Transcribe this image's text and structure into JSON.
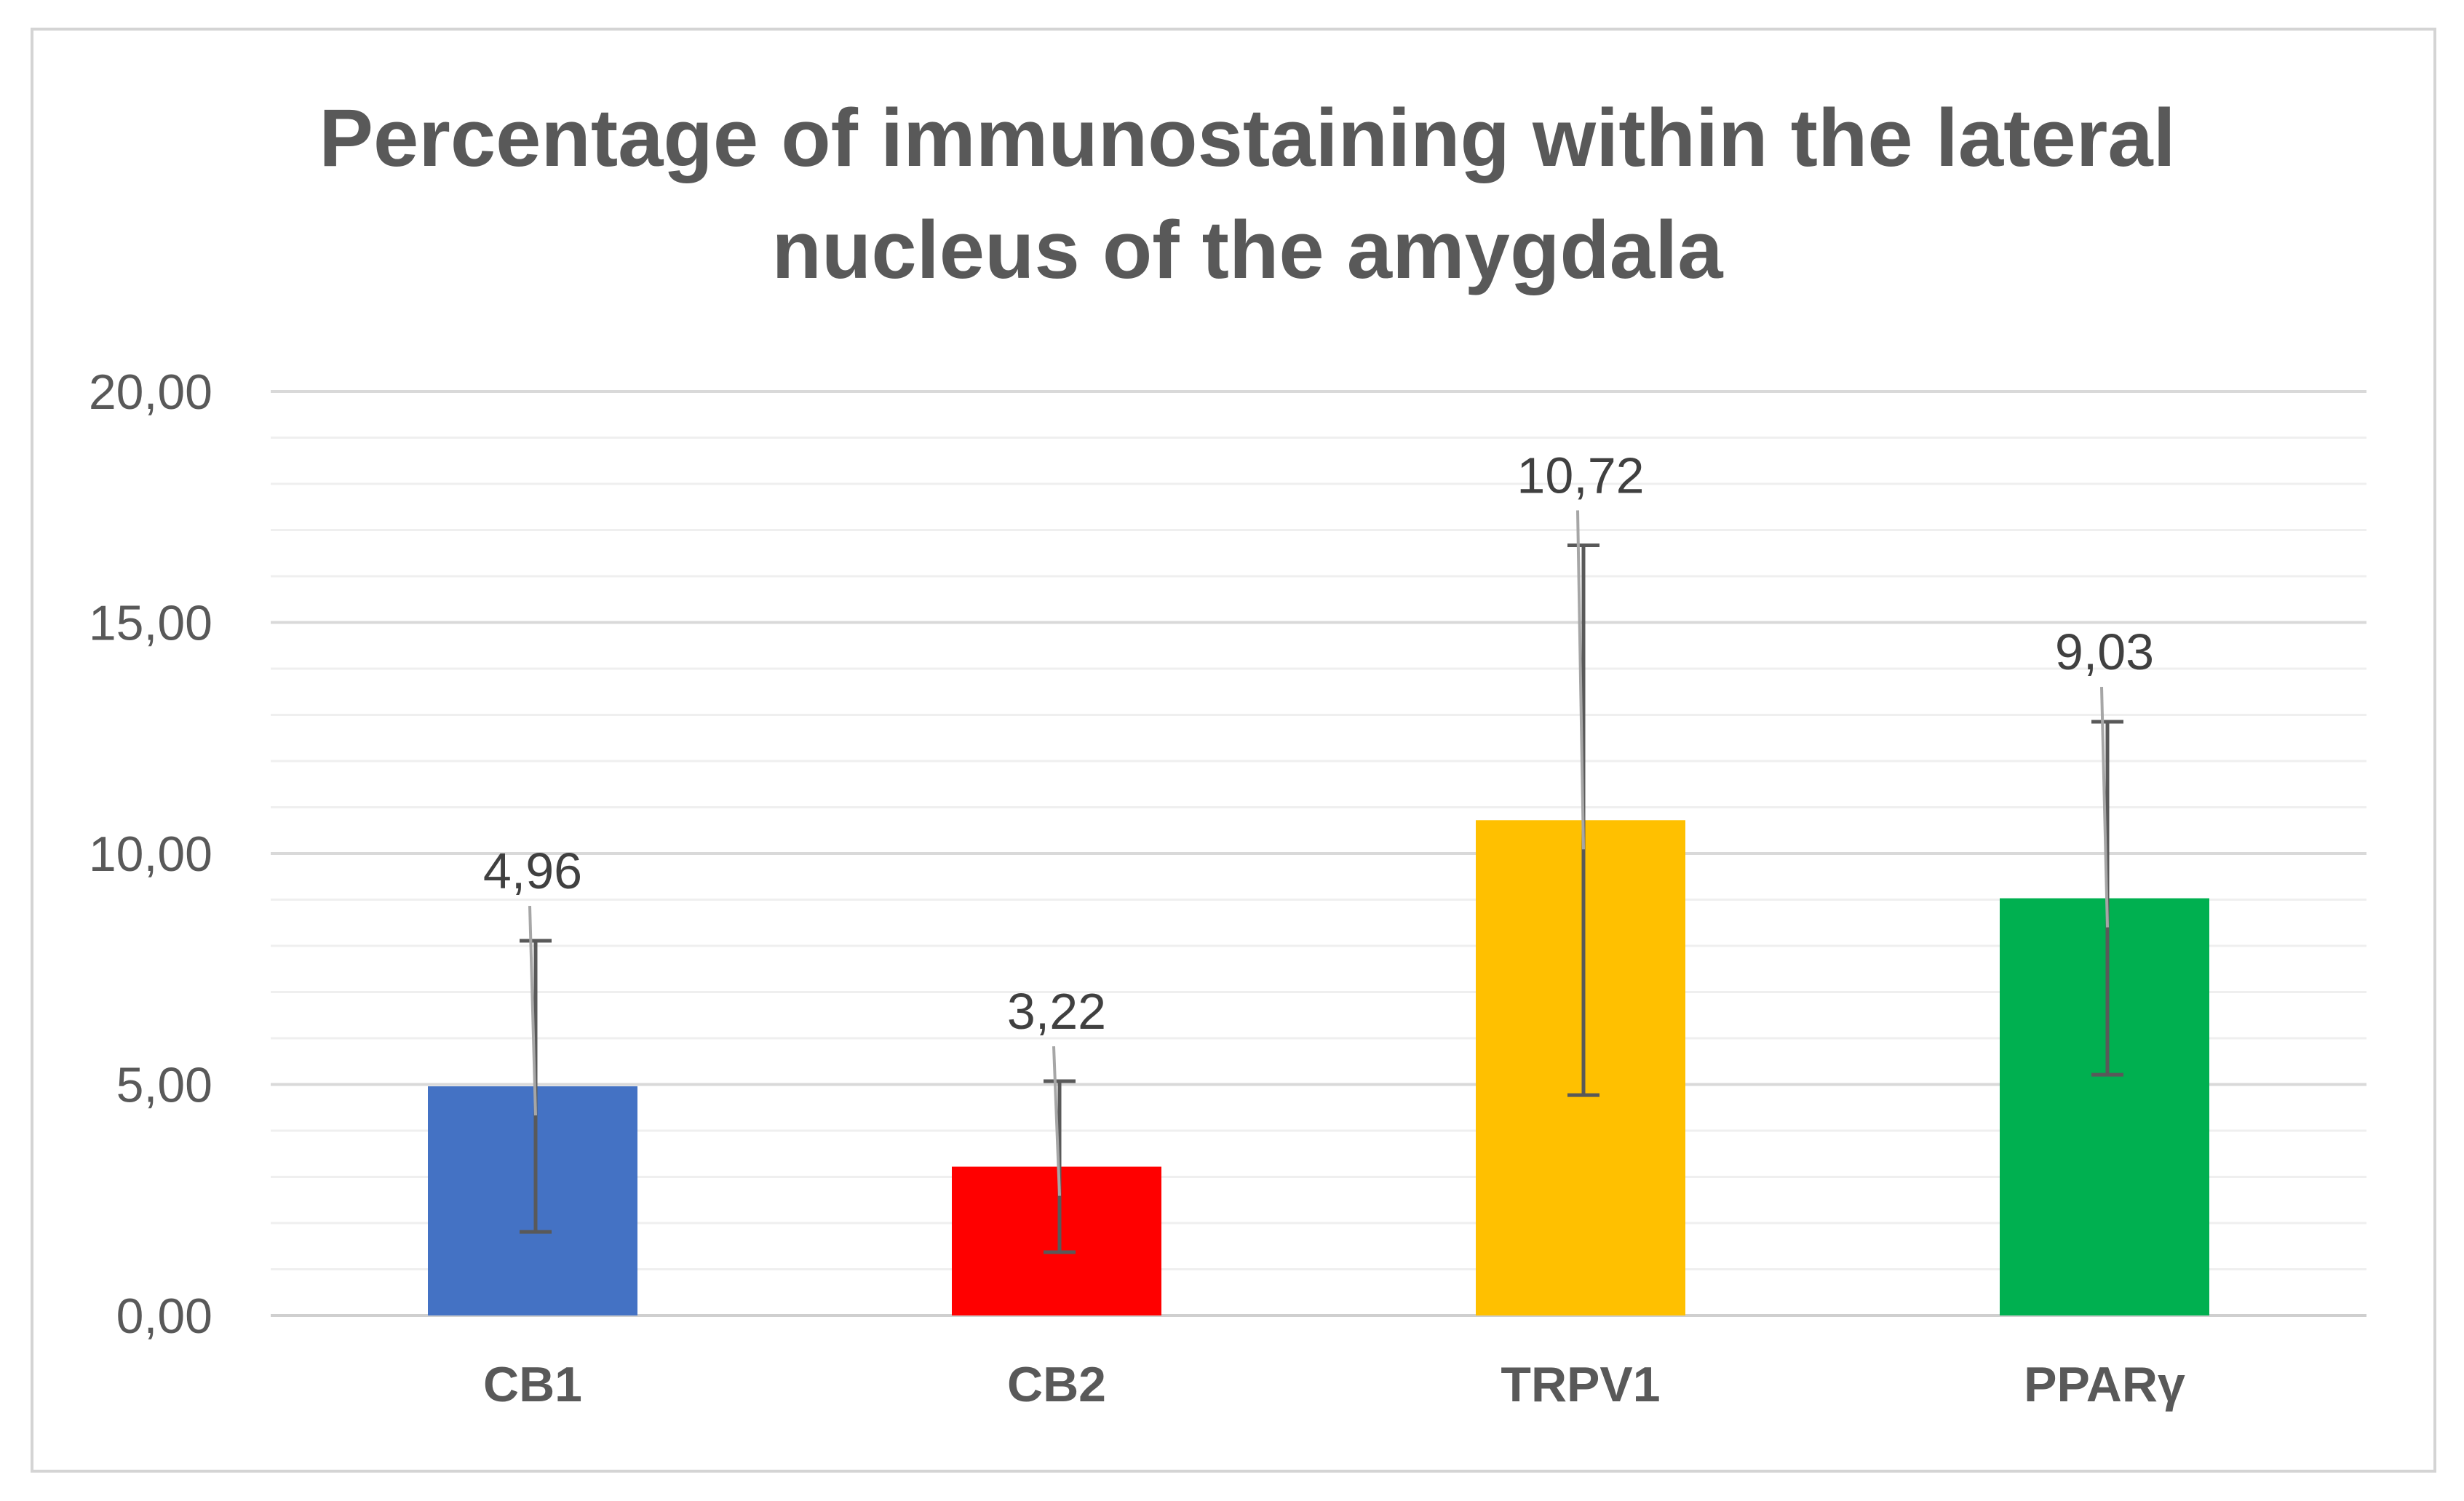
{
  "chart_data": {
    "type": "bar",
    "title_lines": [
      "Percentage of immunostaining within the lateral",
      "nucleus of the amygdala"
    ],
    "categories": [
      "CB1",
      "CB2",
      "TRPV1",
      "PPARγ"
    ],
    "values": [
      4.96,
      3.22,
      10.72,
      9.03
    ],
    "value_labels": [
      "4,96",
      "3,22",
      "10,72",
      "9,03"
    ],
    "error_bars": [
      3.15,
      1.85,
      5.95,
      3.82
    ],
    "colors": [
      "#4472C4",
      "#FF0000",
      "#FFC000",
      "#00B050"
    ],
    "ylim": [
      0,
      20
    ],
    "major_ticks": [
      0,
      5,
      10,
      15,
      20
    ],
    "ytick_labels": [
      "0,00",
      "5,00",
      "10,00",
      "15,00",
      "20,00"
    ],
    "minor_step": 1,
    "grid": true,
    "legend": "none",
    "xlabel": "",
    "ylabel": ""
  }
}
